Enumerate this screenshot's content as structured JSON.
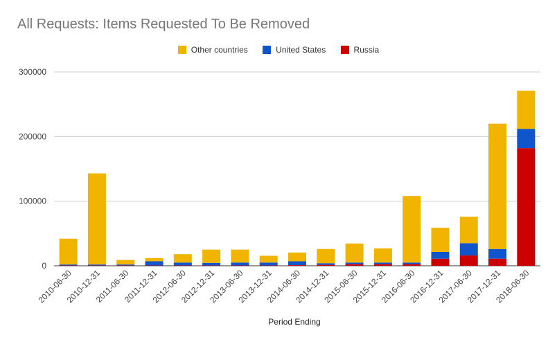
{
  "chart_data": {
    "type": "bar",
    "stacked": true,
    "title": "All Requests: Items Requested To Be Removed",
    "xlabel": "Period Ending",
    "ylabel": "",
    "ylim": [
      0,
      300000
    ],
    "yticks": [
      0,
      100000,
      200000,
      300000
    ],
    "grid": true,
    "legend_position": "top",
    "categories": [
      "2010-06-30",
      "2010-12-31",
      "2011-06-30",
      "2011-12-31",
      "2012-06-30",
      "2012-12-31",
      "2013-06-30",
      "2013-12-31",
      "2014-06-30",
      "2014-12-31",
      "2015-06-30",
      "2015-12-31",
      "2016-06-30",
      "2016-12-31",
      "2017-06-30",
      "2017-12-31",
      "2018-06-30"
    ],
    "series": [
      {
        "name": "Russia",
        "color": "#cc0000",
        "values": [
          500,
          500,
          500,
          500,
          500,
          500,
          500,
          500,
          1000,
          1500,
          2500,
          2500,
          2500,
          11000,
          16000,
          11000,
          182000
        ]
      },
      {
        "name": "United States",
        "color": "#1155cc",
        "values": [
          1500,
          1500,
          1500,
          6500,
          4500,
          4000,
          4500,
          4500,
          6000,
          2500,
          2500,
          2500,
          2500,
          10500,
          19000,
          15000,
          30000
        ]
      },
      {
        "name": "Other countries",
        "color": "#f1b400",
        "values": [
          40000,
          141000,
          7000,
          5000,
          13000,
          20500,
          20000,
          10500,
          13500,
          22000,
          29500,
          22000,
          103000,
          37500,
          41000,
          194000,
          59000
        ]
      }
    ]
  },
  "legend_order": [
    "Other countries",
    "United States",
    "Russia"
  ]
}
